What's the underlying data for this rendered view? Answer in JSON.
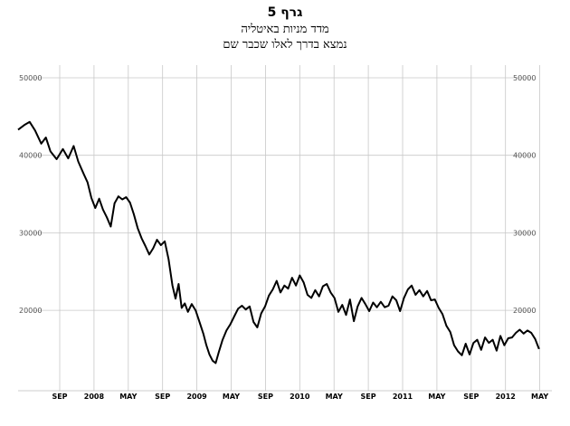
{
  "chart_data": {
    "type": "line",
    "title": "גרף 5",
    "subtitle_1": "מדד מניות באיטליה",
    "subtitle_2": "נמצא בדרך לאלו שכבר שם",
    "xlabel": "",
    "ylabel": "",
    "ylim": [
      10000,
      50000
    ],
    "y_ticks": [
      "20000",
      "30000",
      "40000",
      "50000"
    ],
    "x_tick_labels": [
      "SEP",
      "2008",
      "MAY",
      "SEP",
      "2009",
      "MAY",
      "SEP",
      "2010",
      "MAY",
      "SEP",
      "2011",
      "MAY",
      "SEP",
      "2012",
      "MAY"
    ],
    "x_tick_months": [
      3,
      7,
      11,
      15,
      19,
      23,
      27,
      31,
      35,
      39,
      43,
      47,
      51,
      55,
      59
    ],
    "x_range_months": [
      0,
      62
    ],
    "grid": true,
    "series": [
      {
        "color": "#000000",
        "points": [
          [
            0,
            43300
          ],
          [
            0.8,
            43900
          ],
          [
            1.5,
            44300
          ],
          [
            2.2,
            43200
          ],
          [
            3,
            41500
          ],
          [
            3.6,
            42300
          ],
          [
            4.2,
            40500
          ],
          [
            5,
            39500
          ],
          [
            5.8,
            40800
          ],
          [
            6.5,
            39600
          ],
          [
            7.2,
            41200
          ],
          [
            7.8,
            39200
          ],
          [
            8.5,
            37600
          ],
          [
            9,
            36500
          ],
          [
            9.5,
            34500
          ],
          [
            10,
            33200
          ],
          [
            10.5,
            34400
          ],
          [
            11,
            33000
          ],
          [
            11.5,
            32000
          ],
          [
            12,
            30800
          ],
          [
            12.5,
            33800
          ],
          [
            13,
            34700
          ],
          [
            13.5,
            34300
          ],
          [
            14,
            34600
          ],
          [
            14.5,
            33900
          ],
          [
            15,
            32400
          ],
          [
            15.5,
            30600
          ],
          [
            16,
            29300
          ],
          [
            16.5,
            28300
          ],
          [
            17,
            27200
          ],
          [
            17.5,
            28000
          ],
          [
            18,
            29100
          ],
          [
            18.5,
            28400
          ],
          [
            19,
            28900
          ],
          [
            19.5,
            26600
          ],
          [
            20,
            23200
          ],
          [
            20.4,
            21500
          ],
          [
            20.8,
            23400
          ],
          [
            21.2,
            20300
          ],
          [
            21.6,
            20900
          ],
          [
            22,
            19800
          ],
          [
            22.5,
            20800
          ],
          [
            23,
            20000
          ],
          [
            23.5,
            18500
          ],
          [
            24,
            17000
          ],
          [
            24.4,
            15500
          ],
          [
            24.8,
            14300
          ],
          [
            25.2,
            13500
          ],
          [
            25.6,
            13200
          ],
          [
            26,
            14600
          ],
          [
            26.5,
            16200
          ],
          [
            27,
            17400
          ],
          [
            27.5,
            18200
          ],
          [
            28,
            19200
          ],
          [
            28.5,
            20200
          ],
          [
            29,
            20600
          ],
          [
            29.5,
            20100
          ],
          [
            30,
            20500
          ],
          [
            30.5,
            18500
          ],
          [
            31,
            17800
          ],
          [
            31.5,
            19600
          ],
          [
            32,
            20500
          ],
          [
            32.5,
            21900
          ],
          [
            33,
            22700
          ],
          [
            33.5,
            23800
          ],
          [
            34,
            22300
          ],
          [
            34.5,
            23200
          ],
          [
            35,
            22800
          ],
          [
            35.5,
            24200
          ],
          [
            36,
            23200
          ],
          [
            36.5,
            24500
          ],
          [
            37,
            23600
          ],
          [
            37.5,
            22000
          ],
          [
            38,
            21600
          ],
          [
            38.5,
            22600
          ],
          [
            39,
            21800
          ],
          [
            39.5,
            23100
          ],
          [
            40,
            23400
          ],
          [
            40.5,
            22300
          ],
          [
            41,
            21600
          ],
          [
            41.5,
            19800
          ],
          [
            42,
            20700
          ],
          [
            42.5,
            19400
          ],
          [
            43,
            21400
          ],
          [
            43.5,
            18600
          ],
          [
            44,
            20500
          ],
          [
            44.5,
            21600
          ],
          [
            45,
            20800
          ],
          [
            45.5,
            19900
          ],
          [
            46,
            21000
          ],
          [
            46.5,
            20400
          ],
          [
            47,
            21100
          ],
          [
            47.5,
            20400
          ],
          [
            48,
            20600
          ],
          [
            48.5,
            21800
          ],
          [
            49,
            21300
          ],
          [
            49.5,
            19900
          ],
          [
            50,
            21600
          ],
          [
            50.5,
            22700
          ],
          [
            51,
            23200
          ],
          [
            51.5,
            22000
          ],
          [
            52,
            22600
          ],
          [
            52.5,
            21800
          ],
          [
            53,
            22500
          ],
          [
            53.5,
            21300
          ],
          [
            54,
            21400
          ],
          [
            54.5,
            20300
          ],
          [
            55,
            19500
          ],
          [
            55.5,
            18000
          ],
          [
            56,
            17200
          ],
          [
            56.5,
            15500
          ],
          [
            57,
            14700
          ],
          [
            57.5,
            14200
          ],
          [
            58,
            15700
          ],
          [
            58.5,
            14300
          ],
          [
            59,
            15800
          ],
          [
            59.5,
            16200
          ],
          [
            60,
            14900
          ],
          [
            60.5,
            16500
          ],
          [
            61,
            15800
          ],
          [
            61.5,
            16200
          ],
          [
            62,
            14800
          ],
          [
            62.5,
            16700
          ],
          [
            63,
            15500
          ],
          [
            63.5,
            16400
          ],
          [
            64,
            16500
          ],
          [
            64.5,
            17100
          ],
          [
            65,
            17500
          ],
          [
            65.5,
            17000
          ],
          [
            66,
            17400
          ],
          [
            66.5,
            17100
          ],
          [
            67,
            16300
          ],
          [
            67.5,
            15000
          ]
        ]
      }
    ]
  }
}
